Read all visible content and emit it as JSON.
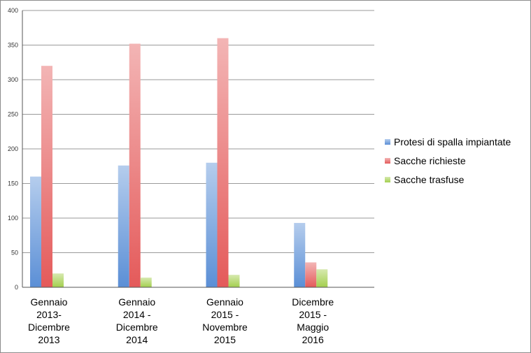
{
  "chart_data": {
    "type": "bar",
    "categories": [
      [
        "Gennaio",
        "2013-",
        "Dicembre",
        "2013"
      ],
      [
        "Gennaio",
        "2014 -",
        "Dicembre",
        "2014"
      ],
      [
        "Gennaio",
        "2015 -",
        "Novembre",
        "2015"
      ],
      [
        "Dicembre",
        "2015 -",
        "Maggio",
        "2016"
      ]
    ],
    "series": [
      {
        "name": "Protesi di spalla impiantate",
        "values": [
          160,
          176,
          180,
          93
        ],
        "color": "#5b8fd6"
      },
      {
        "name": "Sacche richieste",
        "values": [
          320,
          352,
          360,
          36
        ],
        "color": "#e45a5a"
      },
      {
        "name": "Sacche trasfuse",
        "values": [
          20,
          14,
          18,
          26
        ],
        "color": "#a3cf4e"
      }
    ],
    "ylim": [
      0,
      400
    ],
    "yticks": [
      0,
      50,
      100,
      150,
      200,
      250,
      300,
      350,
      400
    ],
    "grid": true,
    "legend": "right"
  }
}
